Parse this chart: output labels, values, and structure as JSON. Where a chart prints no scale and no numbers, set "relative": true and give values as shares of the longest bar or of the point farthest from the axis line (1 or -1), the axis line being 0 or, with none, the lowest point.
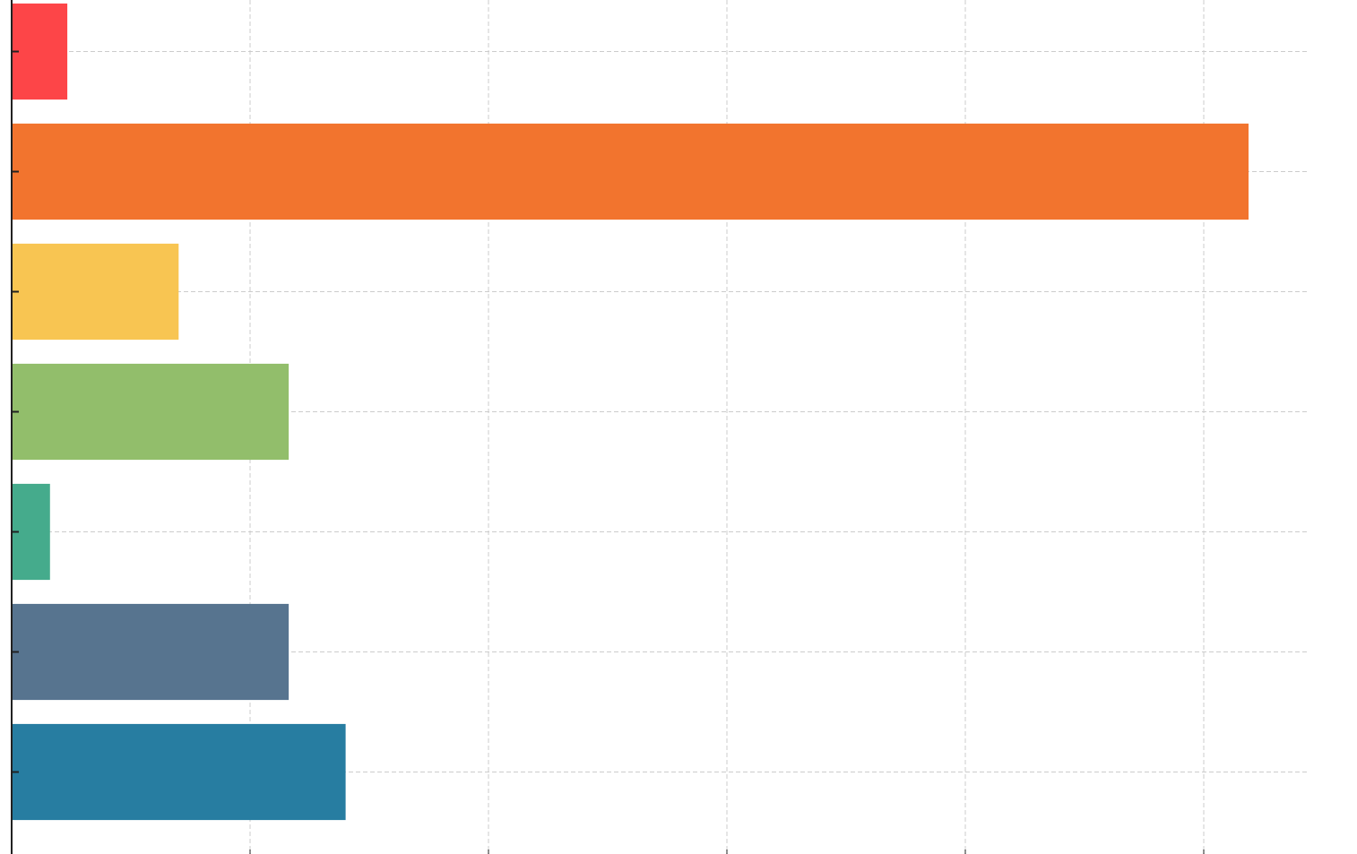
{
  "chart_data": {
    "type": "bar",
    "orientation": "horizontal",
    "relative": true,
    "grid": true,
    "categories": [
      null,
      null,
      null,
      null,
      null,
      null,
      null
    ],
    "values": [
      0.045,
      1,
      0.135,
      0.224,
      0.031,
      0.224,
      0.27
    ],
    "colors": [
      "#fd4548",
      "#f2742e",
      "#f8c552",
      "#92be6b",
      "#45ab8c",
      "#57748f",
      "#277da1"
    ]
  }
}
